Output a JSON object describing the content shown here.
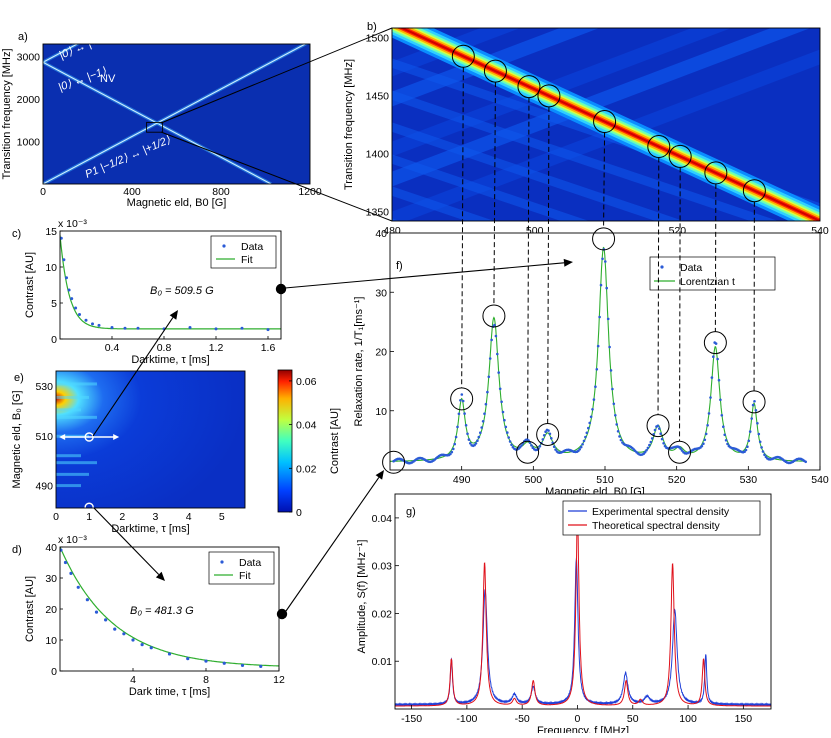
{
  "chart_data": [
    {
      "id": "a",
      "type": "heatmap",
      "panel_label": "a)",
      "xlabel": "Magnetic eld, B0 [G]",
      "ylabel": "Transition frequency [MHz]",
      "xlim": [
        0,
        1200
      ],
      "ylim": [
        0,
        3300
      ],
      "xticks": [
        0,
        400,
        800,
        1200
      ],
      "yticks": [
        1000,
        2000,
        3000
      ],
      "annotations": [
        "|0⟩ ↔ |+1⟩",
        "NV",
        "|0⟩ ↔ |−1⟩",
        "P1 |−1/2⟩ ↔ |+1/2⟩"
      ],
      "lines": [
        {
          "name": "NV 0->+1",
          "x": [
            0,
            1200
          ],
          "y": [
            2870,
            6230
          ]
        },
        {
          "name": "NV 0->-1",
          "x": [
            0,
            1025
          ],
          "y": [
            2870,
            0
          ]
        },
        {
          "name": "P1",
          "x": [
            0,
            1200
          ],
          "y": [
            0,
            3360
          ]
        }
      ]
    },
    {
      "id": "b",
      "type": "heatmap",
      "panel_label": "b)",
      "ylabel": "Transition frequency [MHz]",
      "xlim": [
        480,
        540
      ],
      "ylim": [
        1342,
        1508
      ],
      "xticks": [
        480,
        500,
        520,
        540
      ],
      "yticks": [
        1350,
        1400,
        1450,
        1500
      ],
      "circles_x": [
        490,
        494.5,
        499.2,
        502,
        509.8,
        517.4,
        520.4,
        525.4,
        530.8
      ]
    },
    {
      "id": "c",
      "type": "scatter",
      "panel_label": "c)",
      "xlabel": "Darktime, τ [ms]",
      "ylabel": "Contrast [AU]",
      "exponent": "x 10⁻³",
      "xlim": [
        0,
        1.7
      ],
      "ylim": [
        0,
        15
      ],
      "xticks": [
        0.4,
        0.8,
        1.2,
        1.6
      ],
      "yticks": [
        0,
        5,
        10,
        15
      ],
      "legend": [
        "Data",
        "Fit"
      ],
      "annotation": "B₀ = 509.5 G",
      "data_x": [
        0.01,
        0.03,
        0.05,
        0.07,
        0.09,
        0.12,
        0.15,
        0.2,
        0.25,
        0.3,
        0.4,
        0.5,
        0.6,
        0.8,
        1.0,
        1.2,
        1.4,
        1.6
      ],
      "data_y": [
        14.0,
        11.0,
        8.5,
        6.8,
        5.6,
        4.3,
        3.4,
        2.6,
        2.1,
        1.9,
        1.6,
        1.5,
        1.5,
        1.4,
        1.6,
        1.4,
        1.5,
        1.3
      ],
      "fit": {
        "amplitude": 13.0,
        "tau": 0.07,
        "offset": 1.4
      }
    },
    {
      "id": "d",
      "type": "scatter",
      "panel_label": "d)",
      "xlabel": "Dark time, τ [ms]",
      "ylabel": "Contrast [AU]",
      "exponent": "x 10⁻³",
      "xlim": [
        0,
        12
      ],
      "ylim": [
        0,
        40
      ],
      "xticks": [
        4,
        8,
        12
      ],
      "yticks": [
        0,
        10,
        20,
        30,
        40
      ],
      "legend": [
        "Data",
        "Fit"
      ],
      "annotation": "B₀ = 481.3 G",
      "data_x": [
        0.05,
        0.3,
        0.6,
        1.0,
        1.5,
        2.0,
        2.5,
        3.0,
        3.5,
        4.0,
        4.5,
        5.0,
        6.0,
        7.0,
        8.0,
        9.0,
        10.0,
        11.0
      ],
      "data_y": [
        39,
        35,
        31.5,
        27,
        23,
        19,
        16.5,
        13.5,
        12,
        10,
        8.5,
        7.5,
        5.5,
        4.0,
        3.2,
        2.5,
        1.8,
        1.5
      ],
      "fit": {
        "amplitude": 39,
        "tau": 2.9,
        "offset": 1.0
      }
    },
    {
      "id": "e",
      "type": "heatmap",
      "panel_label": "e)",
      "xlabel": "Darktime, τ [ms]",
      "ylabel": "Magnetic eld, B₀ [G]",
      "xlim": [
        0,
        5.7
      ],
      "ylim": [
        481,
        536
      ],
      "xticks": [
        0,
        1,
        2,
        3,
        4,
        5
      ],
      "yticks": [
        490,
        510,
        530
      ],
      "colorbar_label": "Contrast [AU]",
      "colorbar_ticks": [
        0,
        0.02,
        0.04,
        0.06
      ],
      "colorbar_range": [
        0,
        0.065
      ],
      "markers": [
        {
          "x": 1.0,
          "y": 509.5
        },
        {
          "x": 1.0,
          "y": 481.3
        }
      ]
    },
    {
      "id": "f",
      "type": "line",
      "panel_label": "f)",
      "xlabel": "Magnetic eld, B0 [G]",
      "ylabel": "Relaxation rate, 1/T₁[ms⁻¹]",
      "xlim": [
        480,
        540
      ],
      "ylim": [
        0,
        40
      ],
      "xticks": [
        490,
        500,
        510,
        520,
        530,
        540
      ],
      "yticks": [
        10,
        20,
        30,
        40
      ],
      "legend": [
        "Data",
        "Lorentzian   t"
      ],
      "baseline": 1.3,
      "peaks": [
        {
          "x0": 490.0,
          "height": 9.8,
          "width": 0.6
        },
        {
          "x0": 494.5,
          "height": 24.0,
          "width": 0.85
        },
        {
          "x0": 499.2,
          "height": 2.0,
          "width": 0.9
        },
        {
          "x0": 502.0,
          "height": 4.0,
          "width": 0.9
        },
        {
          "x0": 509.8,
          "height": 36.0,
          "width": 0.85
        },
        {
          "x0": 517.4,
          "height": 5.5,
          "width": 0.8
        },
        {
          "x0": 520.4,
          "height": 1.6,
          "width": 0.8
        },
        {
          "x0": 525.4,
          "height": 19.2,
          "width": 0.75
        },
        {
          "x0": 530.8,
          "height": 9.5,
          "width": 0.55
        }
      ],
      "circle_y": [
        12,
        26,
        3,
        6,
        39,
        7.5,
        3,
        21.5,
        11.5,
        1.3
      ],
      "circle_x": [
        490,
        494.5,
        499.2,
        502,
        509.8,
        517.4,
        520.4,
        525.4,
        530.8,
        480.5
      ]
    },
    {
      "id": "g",
      "type": "line",
      "panel_label": "g)",
      "xlabel": "Frequency, f [MHz]",
      "ylabel": "Amplitude, S(f) [MHz⁻¹]",
      "xlim": [
        -165,
        175
      ],
      "ylim": [
        0,
        0.045
      ],
      "xticks": [
        -150,
        -100,
        -50,
        0,
        50,
        100,
        150
      ],
      "yticks": [
        0.01,
        0.02,
        0.03,
        0.04
      ],
      "legend": [
        "Experimental spectral density",
        "Theoretical spectral density"
      ],
      "series": [
        {
          "name": "Experimental spectral density",
          "color": "#1f3fd8",
          "peaks": [
            [
              -114,
              0.0095,
              1.2
            ],
            [
              -83.5,
              0.024,
              2.4
            ],
            [
              -57,
              0.002,
              2.5
            ],
            [
              -40,
              0.0036,
              2.2
            ],
            [
              -1,
              0.0305,
              1.8
            ],
            [
              43.5,
              0.0065,
              2.5
            ],
            [
              63,
              0.0015,
              3
            ],
            [
              88,
              0.0198,
              2.5
            ],
            [
              116,
              0.0105,
              1.1
            ]
          ],
          "baseline": 0.0009
        },
        {
          "name": "Theoretical spectral density",
          "color": "#e0101a",
          "peaks": [
            [
              -114,
              0.0098,
              1.4
            ],
            [
              -84,
              0.03,
              1.8
            ],
            [
              -57,
              0.0014,
              2
            ],
            [
              -40,
              0.0052,
              1.8
            ],
            [
              0,
              0.0395,
              1.7
            ],
            [
              44,
              0.0052,
              1.8
            ],
            [
              57,
              0.0012,
              2
            ],
            [
              86,
              0.0298,
              1.8
            ],
            [
              114,
              0.0098,
              1.4
            ]
          ],
          "baseline": 0.0006
        }
      ]
    }
  ]
}
